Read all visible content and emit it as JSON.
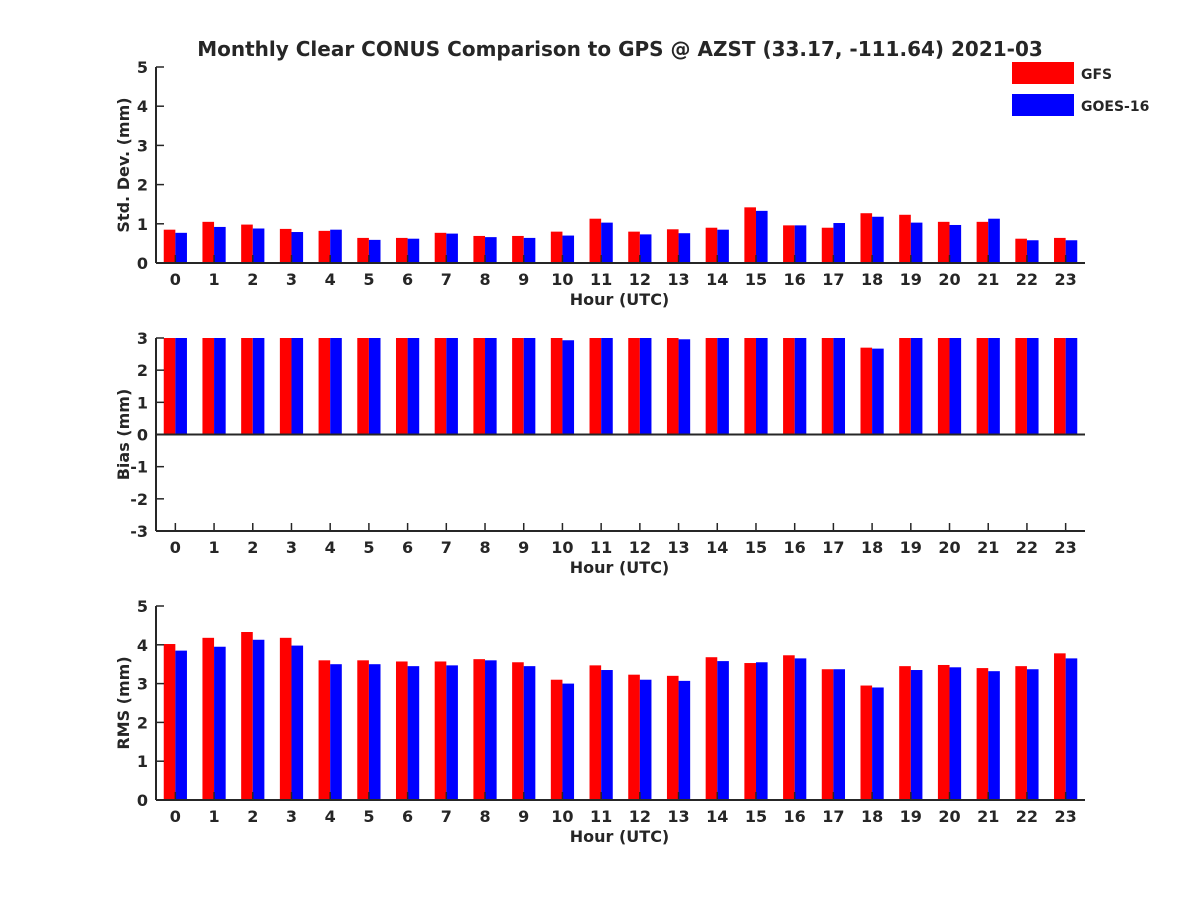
{
  "title": "Monthly Clear CONUS Comparison to GPS @ AZST (33.17, -111.64) 2021-03",
  "legend": [
    {
      "label": "GFS",
      "color": "#ff0000"
    },
    {
      "label": "GOES-16",
      "color": "#0000ff"
    }
  ],
  "chart_data": [
    {
      "type": "bar",
      "ylabel": "Std. Dev. (mm)",
      "xlabel": "Hour (UTC)",
      "categories": [
        "0",
        "1",
        "2",
        "3",
        "4",
        "5",
        "6",
        "7",
        "8",
        "9",
        "10",
        "11",
        "12",
        "13",
        "14",
        "15",
        "16",
        "17",
        "18",
        "19",
        "20",
        "21",
        "22",
        "23"
      ],
      "ylim": [
        0,
        5
      ],
      "yticks": [
        0,
        1,
        2,
        3,
        4,
        5
      ],
      "series": [
        {
          "name": "GFS",
          "color": "#ff0000",
          "values": [
            0.85,
            1.05,
            0.98,
            0.87,
            0.82,
            0.64,
            0.64,
            0.77,
            0.69,
            0.69,
            0.8,
            1.13,
            0.8,
            0.86,
            0.9,
            1.42,
            0.96,
            0.9,
            1.27,
            1.23,
            1.05,
            1.05,
            0.62,
            0.64
          ]
        },
        {
          "name": "GOES-16",
          "color": "#0000ff",
          "values": [
            0.77,
            0.92,
            0.88,
            0.79,
            0.85,
            0.59,
            0.62,
            0.75,
            0.66,
            0.64,
            0.7,
            1.03,
            0.73,
            0.76,
            0.85,
            1.33,
            0.96,
            1.02,
            1.18,
            1.03,
            0.97,
            1.13,
            0.58,
            0.58
          ]
        }
      ]
    },
    {
      "type": "bar",
      "ylabel": "Bias (mm)",
      "xlabel": "Hour (UTC)",
      "categories": [
        "0",
        "1",
        "2",
        "3",
        "4",
        "5",
        "6",
        "7",
        "8",
        "9",
        "10",
        "11",
        "12",
        "13",
        "14",
        "15",
        "16",
        "17",
        "18",
        "19",
        "20",
        "21",
        "22",
        "23"
      ],
      "ylim": [
        -3,
        3
      ],
      "yticks": [
        -3,
        -2,
        -1,
        0,
        1,
        2,
        3
      ],
      "series": [
        {
          "name": "GFS",
          "color": "#ff0000",
          "values": [
            3,
            3,
            3,
            3,
            3,
            3,
            3,
            3,
            3,
            3,
            3,
            3,
            3,
            3,
            3,
            3,
            3,
            3,
            2.7,
            3,
            3,
            3,
            3,
            3
          ]
        },
        {
          "name": "GOES-16",
          "color": "#0000ff",
          "values": [
            3,
            3,
            3,
            3,
            3,
            3,
            3,
            3,
            3,
            3,
            2.93,
            3,
            3,
            2.96,
            3,
            3,
            3,
            3,
            2.67,
            3,
            3,
            3,
            3,
            3
          ]
        }
      ]
    },
    {
      "type": "bar",
      "ylabel": "RMS (mm)",
      "xlabel": "Hour (UTC)",
      "categories": [
        "0",
        "1",
        "2",
        "3",
        "4",
        "5",
        "6",
        "7",
        "8",
        "9",
        "10",
        "11",
        "12",
        "13",
        "14",
        "15",
        "16",
        "17",
        "18",
        "19",
        "20",
        "21",
        "22",
        "23"
      ],
      "ylim": [
        0,
        5
      ],
      "yticks": [
        0,
        1,
        2,
        3,
        4,
        5
      ],
      "series": [
        {
          "name": "GFS",
          "color": "#ff0000",
          "values": [
            4.02,
            4.18,
            4.33,
            4.18,
            3.6,
            3.6,
            3.57,
            3.57,
            3.63,
            3.55,
            3.1,
            3.47,
            3.23,
            3.2,
            3.68,
            3.53,
            3.73,
            3.37,
            2.95,
            3.45,
            3.48,
            3.4,
            3.45,
            3.78
          ]
        },
        {
          "name": "GOES-16",
          "color": "#0000ff",
          "values": [
            3.85,
            3.95,
            4.13,
            3.98,
            3.5,
            3.5,
            3.45,
            3.47,
            3.6,
            3.45,
            3.0,
            3.35,
            3.1,
            3.07,
            3.58,
            3.55,
            3.65,
            3.37,
            2.9,
            3.35,
            3.42,
            3.32,
            3.37,
            3.65
          ]
        }
      ]
    }
  ]
}
